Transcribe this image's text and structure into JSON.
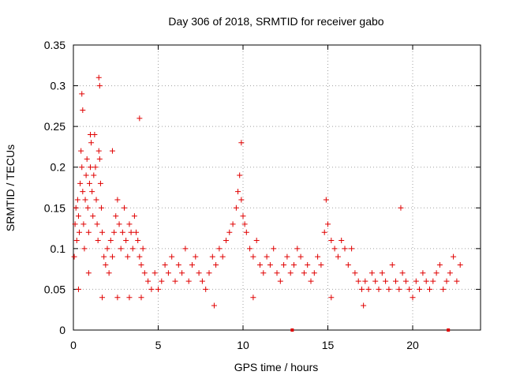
{
  "chart_data": {
    "type": "scatter",
    "title": "Day 306 of 2018, SRMTID for receiver gabo",
    "xlabel": "GPS time / hours",
    "ylabel": "SRMTID / TECUs",
    "xlim": [
      0,
      24
    ],
    "ylim": [
      0,
      0.35
    ],
    "xticks": [
      0,
      5,
      10,
      15,
      20
    ],
    "xtick_labels": [
      "0",
      "5",
      "10",
      "15",
      "20"
    ],
    "yticks": [
      0,
      0.05,
      0.1,
      0.15,
      0.2,
      0.25,
      0.3,
      0.35
    ],
    "ytick_labels": [
      "0",
      "0.05",
      "0.1",
      "0.15",
      "0.2",
      "0.25",
      "0.3",
      "0.35"
    ],
    "grid": true,
    "marker": "+",
    "color": "#e00000",
    "series": [
      {
        "name": "SRMTID",
        "x": [
          0.05,
          0.1,
          0.15,
          0.2,
          0.25,
          0.3,
          0.35,
          0.4,
          0.45,
          0.5,
          0.55,
          0.6,
          0.65,
          0.7,
          0.75,
          0.8,
          0.85,
          0.9,
          0.95,
          1.0,
          1.05,
          1.1,
          1.15,
          1.2,
          1.25,
          1.3,
          1.35,
          1.4,
          1.45,
          1.5,
          1.55,
          1.6,
          1.65,
          1.7,
          1.8,
          1.9,
          2.0,
          2.1,
          2.2,
          2.3,
          2.4,
          2.5,
          2.6,
          2.7,
          2.8,
          2.9,
          3.0,
          3.1,
          3.2,
          3.3,
          3.4,
          3.5,
          3.6,
          3.7,
          3.8,
          3.9,
          4.0,
          4.1,
          4.2,
          4.4,
          4.6,
          4.8,
          5.0,
          5.2,
          5.4,
          5.6,
          5.8,
          6.0,
          6.2,
          6.4,
          6.6,
          6.8,
          7.0,
          7.2,
          7.4,
          7.6,
          7.8,
          8.0,
          8.2,
          8.4,
          8.6,
          8.8,
          9.0,
          9.2,
          9.4,
          9.6,
          9.7,
          9.8,
          9.9,
          10.0,
          10.1,
          10.2,
          10.4,
          10.6,
          10.8,
          11.0,
          11.2,
          11.4,
          11.6,
          11.8,
          12.0,
          12.2,
          12.4,
          12.6,
          12.8,
          13.0,
          13.2,
          13.4,
          13.6,
          13.8,
          14.0,
          14.2,
          14.4,
          14.6,
          14.8,
          15.0,
          15.2,
          15.4,
          15.6,
          15.8,
          16.0,
          16.2,
          16.4,
          16.6,
          16.8,
          17.0,
          17.2,
          17.4,
          17.6,
          17.8,
          18.0,
          18.2,
          18.4,
          18.6,
          18.8,
          19.0,
          19.2,
          19.4,
          19.6,
          19.8,
          20.0,
          20.2,
          20.4,
          20.6,
          20.8,
          21.0,
          21.2,
          21.4,
          21.6,
          21.8,
          22.0,
          22.2,
          22.4,
          22.6,
          22.8,
          0.5,
          0.55,
          1.5,
          1.55,
          3.9,
          2.3,
          1.0,
          9.9,
          14.9,
          19.3,
          0.3,
          0.9,
          1.7,
          2.6,
          3.3,
          4.0,
          8.3,
          10.6,
          15.2,
          17.1
        ],
        "y": [
          0.09,
          0.13,
          0.15,
          0.11,
          0.16,
          0.14,
          0.12,
          0.18,
          0.22,
          0.2,
          0.17,
          0.13,
          0.1,
          0.16,
          0.19,
          0.21,
          0.15,
          0.12,
          0.18,
          0.2,
          0.23,
          0.17,
          0.14,
          0.19,
          0.24,
          0.2,
          0.16,
          0.13,
          0.11,
          0.22,
          0.21,
          0.18,
          0.15,
          0.12,
          0.09,
          0.08,
          0.1,
          0.07,
          0.11,
          0.09,
          0.12,
          0.14,
          0.16,
          0.13,
          0.1,
          0.12,
          0.15,
          0.11,
          0.09,
          0.13,
          0.12,
          0.1,
          0.14,
          0.12,
          0.11,
          0.09,
          0.08,
          0.1,
          0.07,
          0.06,
          0.05,
          0.07,
          0.05,
          0.06,
          0.08,
          0.07,
          0.09,
          0.06,
          0.08,
          0.07,
          0.1,
          0.06,
          0.08,
          0.09,
          0.07,
          0.06,
          0.05,
          0.07,
          0.09,
          0.08,
          0.1,
          0.09,
          0.11,
          0.12,
          0.13,
          0.15,
          0.17,
          0.19,
          0.16,
          0.14,
          0.13,
          0.12,
          0.1,
          0.09,
          0.11,
          0.08,
          0.07,
          0.09,
          0.08,
          0.1,
          0.07,
          0.06,
          0.08,
          0.09,
          0.07,
          0.08,
          0.1,
          0.09,
          0.07,
          0.08,
          0.06,
          0.07,
          0.09,
          0.08,
          0.12,
          0.13,
          0.11,
          0.1,
          0.09,
          0.11,
          0.1,
          0.08,
          0.1,
          0.07,
          0.06,
          0.05,
          0.06,
          0.05,
          0.07,
          0.06,
          0.05,
          0.07,
          0.06,
          0.05,
          0.08,
          0.06,
          0.05,
          0.07,
          0.06,
          0.05,
          0.04,
          0.06,
          0.05,
          0.07,
          0.06,
          0.05,
          0.06,
          0.07,
          0.08,
          0.05,
          0.06,
          0.07,
          0.09,
          0.06,
          0.08,
          0.29,
          0.27,
          0.31,
          0.3,
          0.26,
          0.22,
          0.24,
          0.23,
          0.16,
          0.15,
          0.05,
          0.07,
          0.04,
          0.04,
          0.04,
          0.04,
          0.03,
          0.04,
          0.04,
          0.03
        ]
      }
    ],
    "axis_markers_x": [
      12.9,
      22.1
    ]
  }
}
